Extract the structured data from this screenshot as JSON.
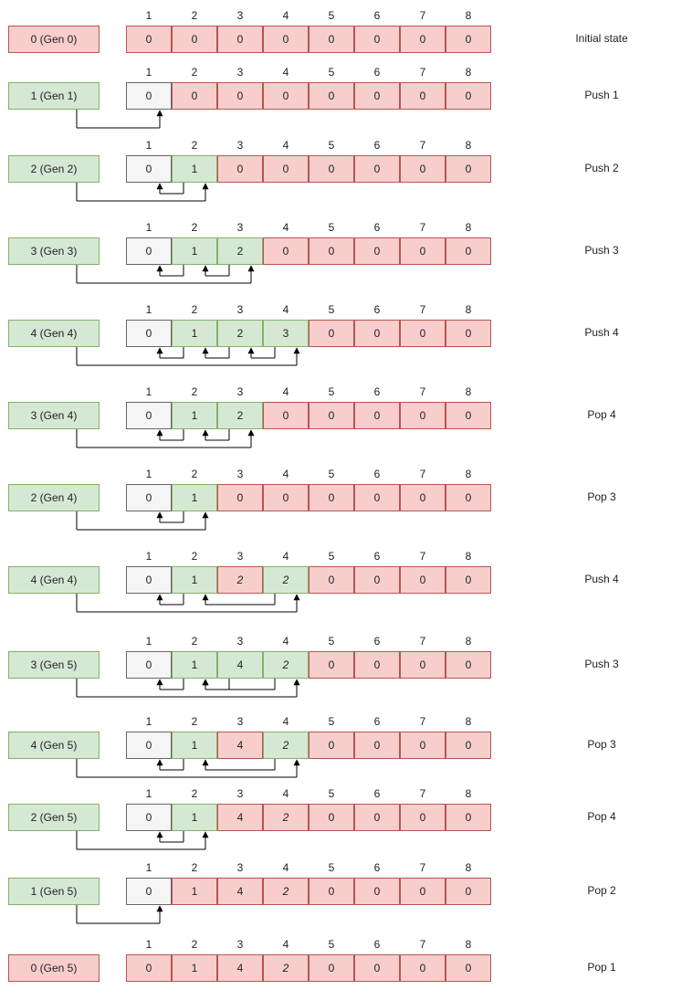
{
  "colors": {
    "empty": "#f8cecc",
    "used": "#d5e8d4",
    "sentinel": "#f5f5f5",
    "line": "#000000"
  },
  "column_headers": [
    "1",
    "2",
    "3",
    "4",
    "5",
    "6",
    "7",
    "8"
  ],
  "rows": [
    {
      "pointer": "0 (Gen 0)",
      "pointer_color": "empty",
      "label": "Initial state",
      "cells": [
        [
          "0",
          "empty"
        ],
        [
          "0",
          "empty"
        ],
        [
          "0",
          "empty"
        ],
        [
          "0",
          "empty"
        ],
        [
          "0",
          "empty"
        ],
        [
          "0",
          "empty"
        ],
        [
          "0",
          "empty"
        ],
        [
          "0",
          "empty"
        ]
      ],
      "links": []
    },
    {
      "pointer": "1 (Gen 1)",
      "pointer_color": "used",
      "label": "Push 1",
      "cells": [
        [
          "0",
          "sentinel"
        ],
        [
          "0",
          "empty"
        ],
        [
          "0",
          "empty"
        ],
        [
          "0",
          "empty"
        ],
        [
          "0",
          "empty"
        ],
        [
          "0",
          "empty"
        ],
        [
          "0",
          "empty"
        ],
        [
          "0",
          "empty"
        ]
      ],
      "links": [
        [
          "p",
          1
        ]
      ]
    },
    {
      "pointer": "2 (Gen 2)",
      "pointer_color": "used",
      "label": "Push 2",
      "cells": [
        [
          "0",
          "sentinel"
        ],
        [
          "1",
          "used"
        ],
        [
          "0",
          "empty"
        ],
        [
          "0",
          "empty"
        ],
        [
          "0",
          "empty"
        ],
        [
          "0",
          "empty"
        ],
        [
          "0",
          "empty"
        ],
        [
          "0",
          "empty"
        ]
      ],
      "links": [
        [
          2,
          1
        ],
        [
          "p",
          2
        ]
      ]
    },
    {
      "pointer": "3 (Gen 3)",
      "pointer_color": "used",
      "label": "Push 3",
      "cells": [
        [
          "0",
          "sentinel"
        ],
        [
          "1",
          "used"
        ],
        [
          "2",
          "used"
        ],
        [
          "0",
          "empty"
        ],
        [
          "0",
          "empty"
        ],
        [
          "0",
          "empty"
        ],
        [
          "0",
          "empty"
        ],
        [
          "0",
          "empty"
        ]
      ],
      "links": [
        [
          2,
          1
        ],
        [
          3,
          2
        ],
        [
          "p",
          3
        ]
      ]
    },
    {
      "pointer": "4 (Gen 4)",
      "pointer_color": "used",
      "label": "Push 4",
      "cells": [
        [
          "0",
          "sentinel"
        ],
        [
          "1",
          "used"
        ],
        [
          "2",
          "used"
        ],
        [
          "3",
          "used"
        ],
        [
          "0",
          "empty"
        ],
        [
          "0",
          "empty"
        ],
        [
          "0",
          "empty"
        ],
        [
          "0",
          "empty"
        ]
      ],
      "links": [
        [
          2,
          1
        ],
        [
          3,
          2
        ],
        [
          4,
          3
        ],
        [
          "p",
          4
        ]
      ]
    },
    {
      "pointer": "3 (Gen 4)",
      "pointer_color": "used",
      "label": "Pop 4",
      "cells": [
        [
          "0",
          "sentinel"
        ],
        [
          "1",
          "used"
        ],
        [
          "2",
          "used"
        ],
        [
          "0",
          "empty"
        ],
        [
          "0",
          "empty"
        ],
        [
          "0",
          "empty"
        ],
        [
          "0",
          "empty"
        ],
        [
          "0",
          "empty"
        ]
      ],
      "links": [
        [
          2,
          1
        ],
        [
          3,
          2
        ],
        [
          "p",
          3
        ]
      ]
    },
    {
      "pointer": "2 (Gen 4)",
      "pointer_color": "used",
      "label": "Pop 3",
      "cells": [
        [
          "0",
          "sentinel"
        ],
        [
          "1",
          "used"
        ],
        [
          "0",
          "empty"
        ],
        [
          "0",
          "empty"
        ],
        [
          "0",
          "empty"
        ],
        [
          "0",
          "empty"
        ],
        [
          "0",
          "empty"
        ],
        [
          "0",
          "empty"
        ]
      ],
      "links": [
        [
          2,
          1
        ],
        [
          "p",
          2
        ]
      ]
    },
    {
      "pointer": "4 (Gen 4)",
      "pointer_color": "used",
      "label": "Push 4",
      "cells": [
        [
          "0",
          "sentinel"
        ],
        [
          "1",
          "used"
        ],
        [
          "2",
          "empty",
          "it"
        ],
        [
          "2",
          "used",
          "it"
        ],
        [
          "0",
          "empty"
        ],
        [
          "0",
          "empty"
        ],
        [
          "0",
          "empty"
        ],
        [
          "0",
          "empty"
        ]
      ],
      "links": [
        [
          2,
          1
        ],
        [
          4,
          2
        ],
        [
          "p",
          4
        ]
      ]
    },
    {
      "pointer": "3 (Gen 5)",
      "pointer_color": "used",
      "label": "Push 3",
      "cells": [
        [
          "0",
          "sentinel"
        ],
        [
          "1",
          "used"
        ],
        [
          "4",
          "used"
        ],
        [
          "2",
          "used",
          "it"
        ],
        [
          "0",
          "empty"
        ],
        [
          "0",
          "empty"
        ],
        [
          "0",
          "empty"
        ],
        [
          "0",
          "empty"
        ]
      ],
      "links": [
        [
          2,
          1
        ],
        [
          3,
          2
        ],
        [
          4,
          2
        ],
        [
          "p",
          4
        ]
      ]
    },
    {
      "pointer": "4 (Gen 5)",
      "pointer_color": "used",
      "label": "Pop 3",
      "cells": [
        [
          "0",
          "sentinel"
        ],
        [
          "1",
          "used"
        ],
        [
          "4",
          "empty"
        ],
        [
          "2",
          "used",
          "it"
        ],
        [
          "0",
          "empty"
        ],
        [
          "0",
          "empty"
        ],
        [
          "0",
          "empty"
        ],
        [
          "0",
          "empty"
        ]
      ],
      "links": [
        [
          2,
          1
        ],
        [
          4,
          2
        ],
        [
          "p",
          4
        ]
      ]
    },
    {
      "pointer": "2 (Gen 5)",
      "pointer_color": "used",
      "label": "Pop 4",
      "cells": [
        [
          "0",
          "sentinel"
        ],
        [
          "1",
          "used"
        ],
        [
          "4",
          "empty"
        ],
        [
          "2",
          "empty",
          "it"
        ],
        [
          "0",
          "empty"
        ],
        [
          "0",
          "empty"
        ],
        [
          "0",
          "empty"
        ],
        [
          "0",
          "empty"
        ]
      ],
      "links": [
        [
          2,
          1
        ],
        [
          "p",
          2
        ]
      ]
    },
    {
      "pointer": "1 (Gen 5)",
      "pointer_color": "used",
      "label": "Pop 2",
      "cells": [
        [
          "0",
          "sentinel"
        ],
        [
          "1",
          "empty"
        ],
        [
          "4",
          "empty"
        ],
        [
          "2",
          "empty",
          "it"
        ],
        [
          "0",
          "empty"
        ],
        [
          "0",
          "empty"
        ],
        [
          "0",
          "empty"
        ],
        [
          "0",
          "empty"
        ]
      ],
      "links": [
        [
          "p",
          1
        ]
      ]
    },
    {
      "pointer": "0 (Gen 5)",
      "pointer_color": "empty",
      "label": "Pop 1",
      "cells": [
        [
          "0",
          "empty"
        ],
        [
          "1",
          "empty"
        ],
        [
          "4",
          "empty"
        ],
        [
          "2",
          "empty",
          "it"
        ],
        [
          "0",
          "empty"
        ],
        [
          "0",
          "empty"
        ],
        [
          "0",
          "empty"
        ],
        [
          "0",
          "empty"
        ]
      ],
      "links": []
    }
  ]
}
